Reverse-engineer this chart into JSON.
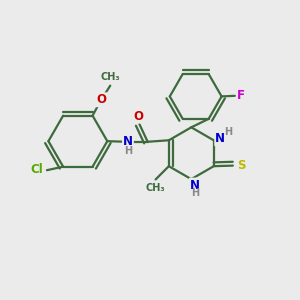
{
  "background_color": "#ebebeb",
  "bond_color": "#3d6b3d",
  "bond_width": 1.6,
  "atom_colors": {
    "C": "#3d6b3d",
    "N": "#0000cc",
    "O": "#cc0000",
    "S": "#bbbb00",
    "F": "#cc00cc",
    "Cl": "#55aa00",
    "H": "#888888"
  },
  "font_size": 8.5,
  "fig_bg": "#ebebeb"
}
